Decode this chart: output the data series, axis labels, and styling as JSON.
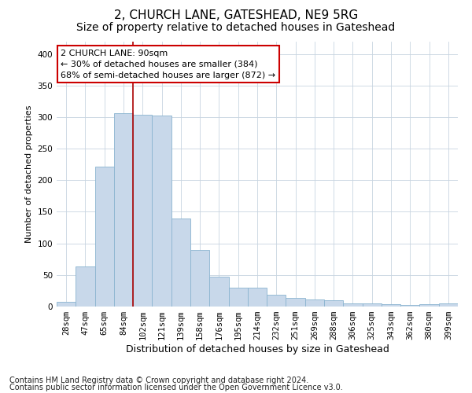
{
  "title": "2, CHURCH LANE, GATESHEAD, NE9 5RG",
  "subtitle": "Size of property relative to detached houses in Gateshead",
  "xlabel": "Distribution of detached houses by size in Gateshead",
  "ylabel": "Number of detached properties",
  "categories": [
    "28sqm",
    "47sqm",
    "65sqm",
    "84sqm",
    "102sqm",
    "121sqm",
    "139sqm",
    "158sqm",
    "176sqm",
    "195sqm",
    "214sqm",
    "232sqm",
    "251sqm",
    "269sqm",
    "288sqm",
    "306sqm",
    "325sqm",
    "343sqm",
    "362sqm",
    "380sqm",
    "399sqm"
  ],
  "values": [
    8,
    63,
    221,
    306,
    304,
    302,
    140,
    90,
    47,
    30,
    30,
    19,
    14,
    11,
    10,
    5,
    5,
    4,
    2,
    4,
    5
  ],
  "bar_color": "#c8d8ea",
  "bar_edge_color": "#8ab4d0",
  "property_label": "2 CHURCH LANE: 90sqm",
  "pct_smaller": 30,
  "count_smaller": 384,
  "pct_larger": 68,
  "count_larger": 872,
  "vline_color": "#aa0000",
  "vline_x": 3.5,
  "annotation_box_color": "#cc0000",
  "footnote1": "Contains HM Land Registry data © Crown copyright and database right 2024.",
  "footnote2": "Contains public sector information licensed under the Open Government Licence v3.0.",
  "ylim": [
    0,
    420
  ],
  "yticks": [
    0,
    50,
    100,
    150,
    200,
    250,
    300,
    350,
    400
  ],
  "title_fontsize": 11,
  "subtitle_fontsize": 10,
  "xlabel_fontsize": 9,
  "ylabel_fontsize": 8,
  "tick_fontsize": 7.5,
  "annotation_fontsize": 8,
  "footnote_fontsize": 7,
  "background_color": "#ffffff",
  "grid_color": "#c8d4e0"
}
